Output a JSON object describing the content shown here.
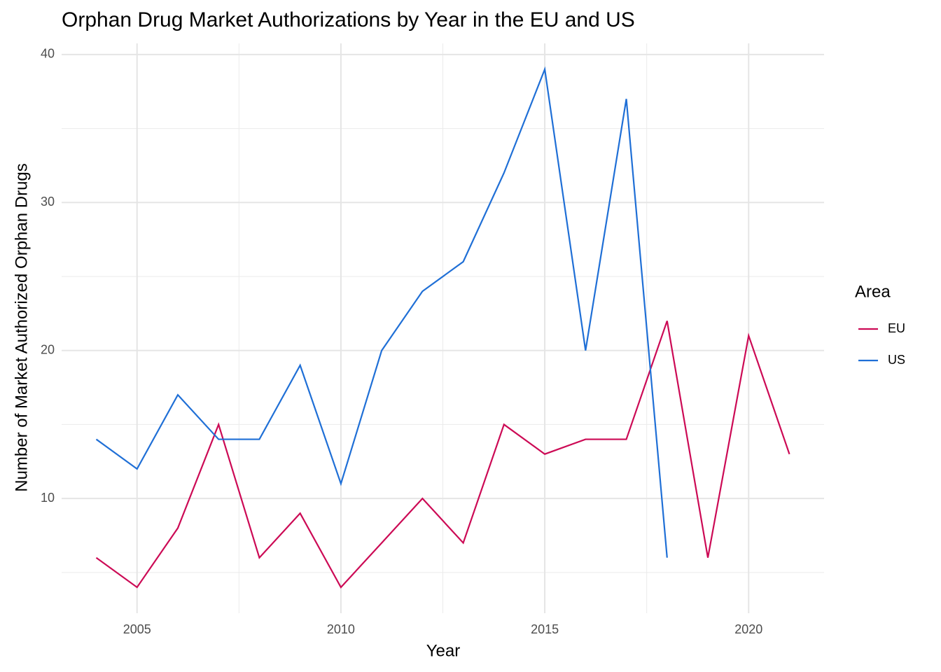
{
  "chart_data": {
    "type": "line",
    "title": "Orphan Drug Market Authorizations by Year in the EU and US",
    "x_label": "Year",
    "y_label": "Number of Market Authorized Orphan Drugs",
    "x": [
      2004,
      2005,
      2006,
      2007,
      2008,
      2009,
      2010,
      2011,
      2012,
      2013,
      2014,
      2015,
      2016,
      2017,
      2018,
      2019,
      2020,
      2021
    ],
    "series": [
      {
        "name": "EU",
        "color": "#cc0a55",
        "values": [
          6,
          4,
          8,
          15,
          6,
          9,
          4,
          7,
          10,
          7,
          15,
          13,
          14,
          14,
          22,
          6,
          21,
          13
        ]
      },
      {
        "name": "US",
        "color": "#1f6fd6",
        "values": [
          14,
          12,
          17,
          14,
          14,
          19,
          11,
          20,
          24,
          26,
          32,
          39,
          20,
          37,
          6,
          null,
          null,
          null
        ]
      }
    ],
    "xlim": [
      2003.15,
      2021.85
    ],
    "ylim": [
      2.25,
      40.75
    ],
    "xticks": [
      2005,
      2010,
      2015,
      2020
    ],
    "yticks": [
      10,
      20,
      30,
      40
    ],
    "x_minor_grid": [
      2007.5,
      2012.5,
      2017.5
    ],
    "y_minor_grid": [
      5,
      15,
      25,
      35
    ],
    "grid": true,
    "legend_title": "Area",
    "legend_position": "right"
  }
}
